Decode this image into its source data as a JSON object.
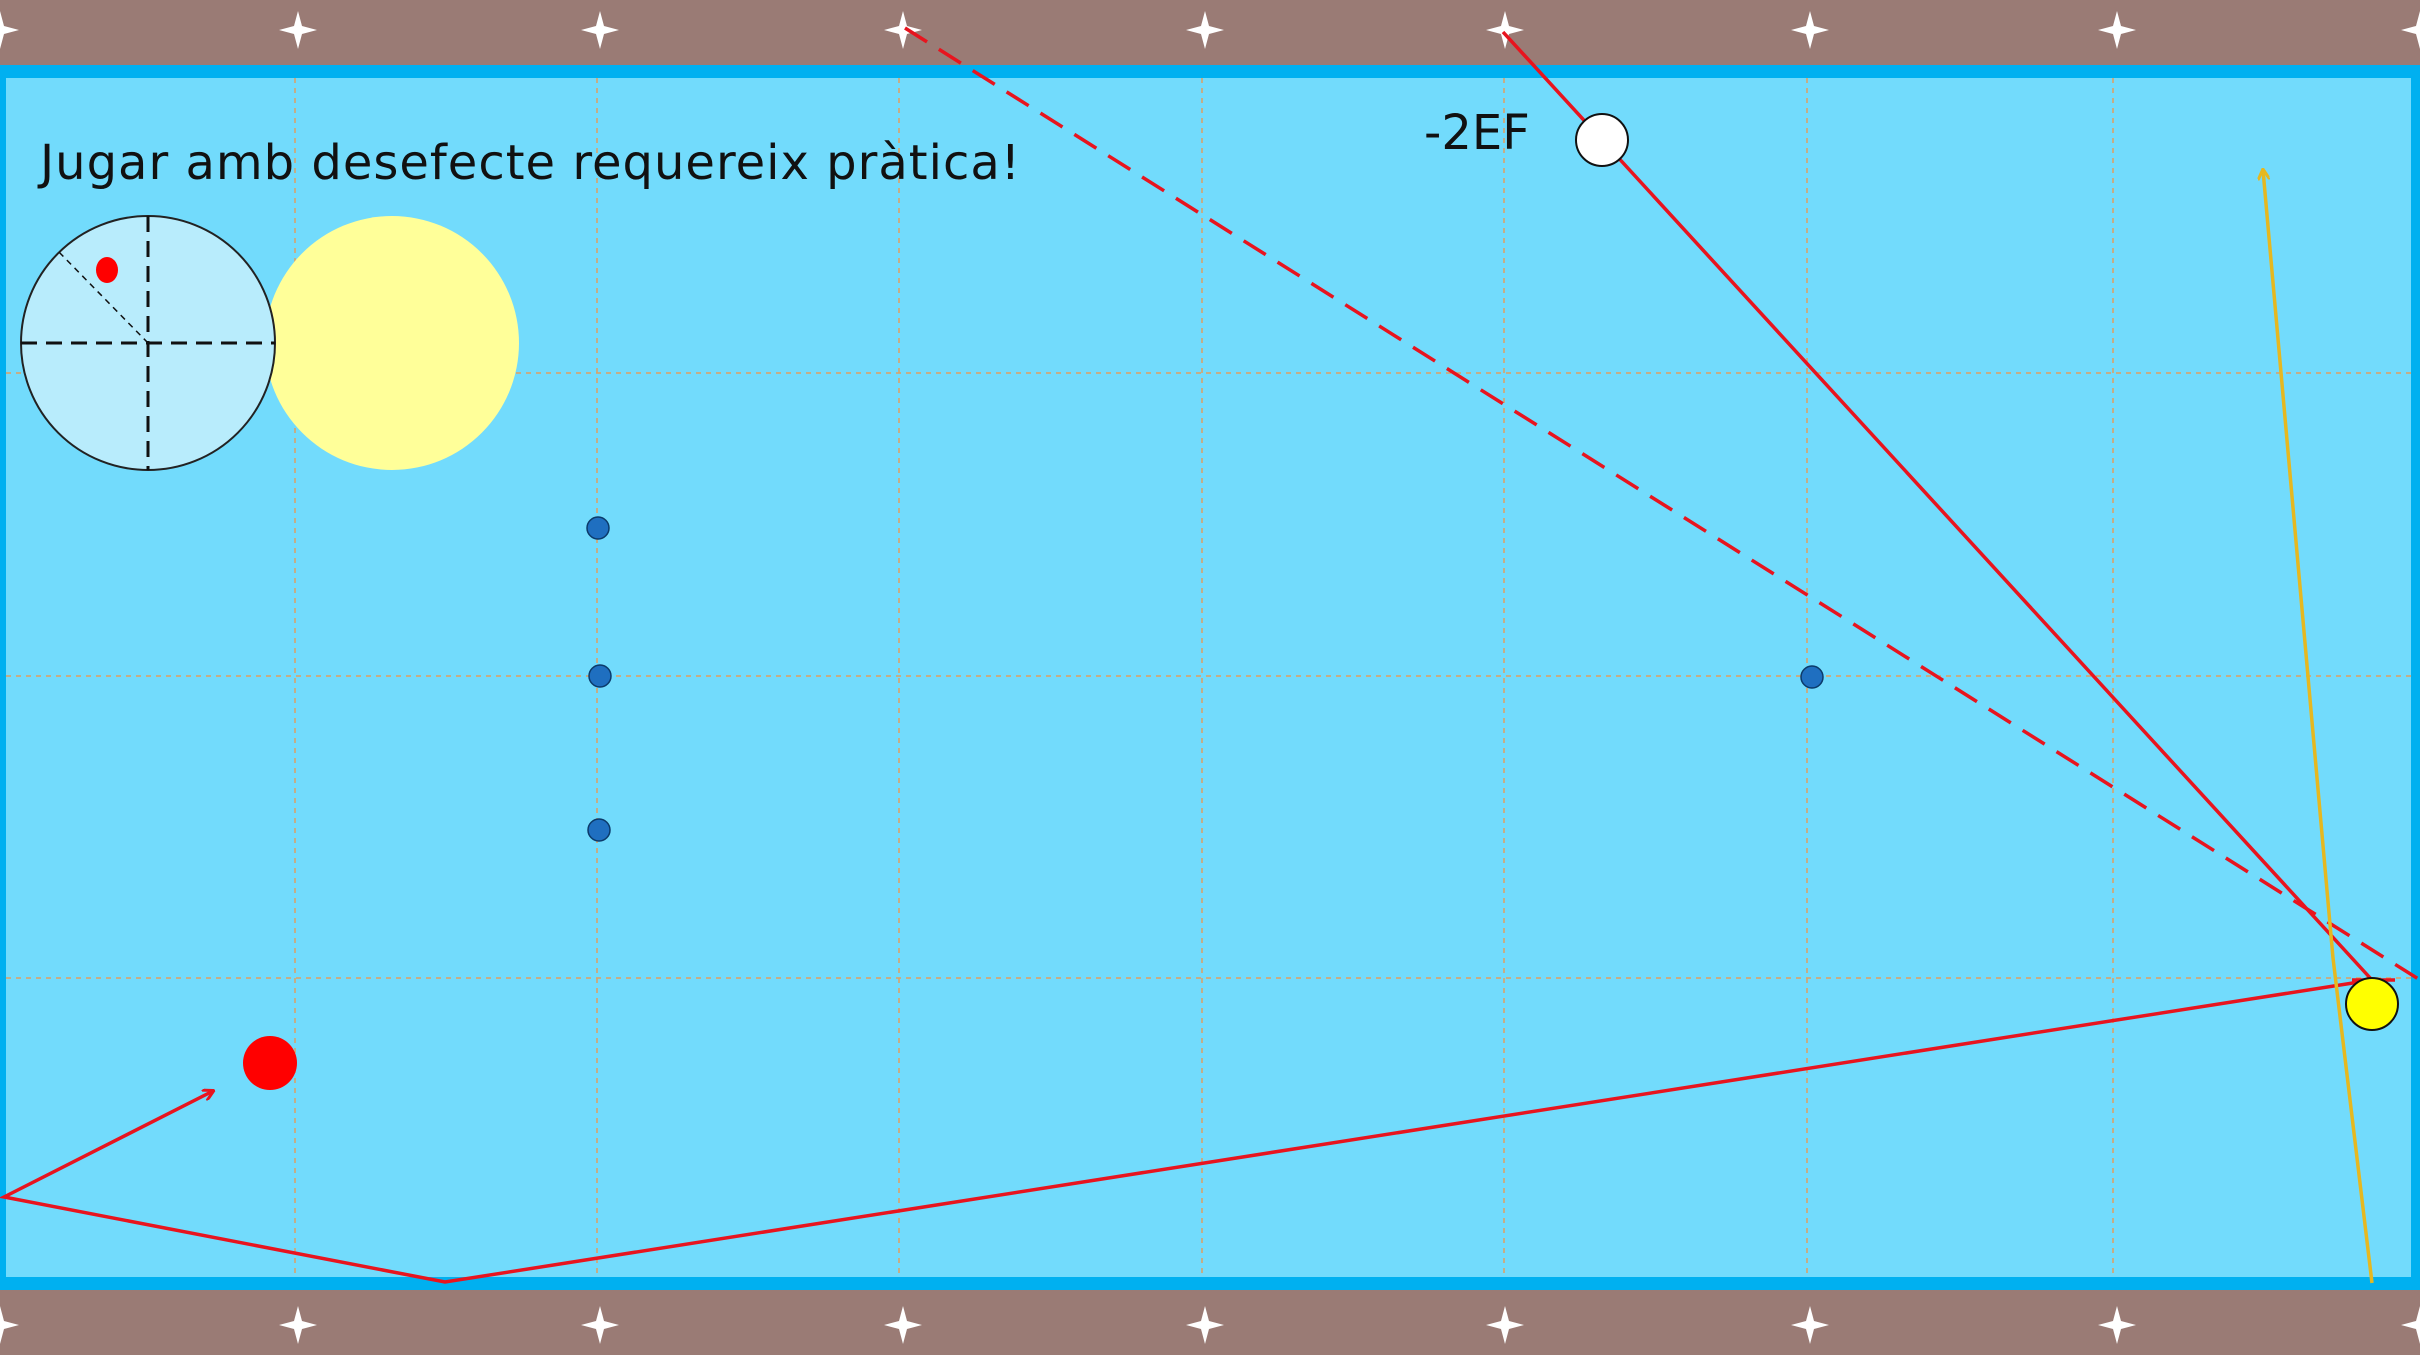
{
  "title": "Jugar amb desefecte requereix pràtica!",
  "cue_label": "-2EF",
  "colors": {
    "rail": "#9a7b75",
    "cushion": "#00b0f0",
    "cloth": "#72dbfc",
    "grid": "#e0a060",
    "diamond": "#ffffff",
    "path": "#e8141e",
    "yellow_path": "#e6b820",
    "cue_ball": "#ffffff",
    "yellow_ball": "#ffff00",
    "red_ball": "#ff0000",
    "marker": "#1f6fc0",
    "spin_disc": "#b8ecfc",
    "ghost_ball": "#ffff99"
  },
  "icons": [
    "diamond-star-icon",
    "arrow-head-icon"
  ]
}
